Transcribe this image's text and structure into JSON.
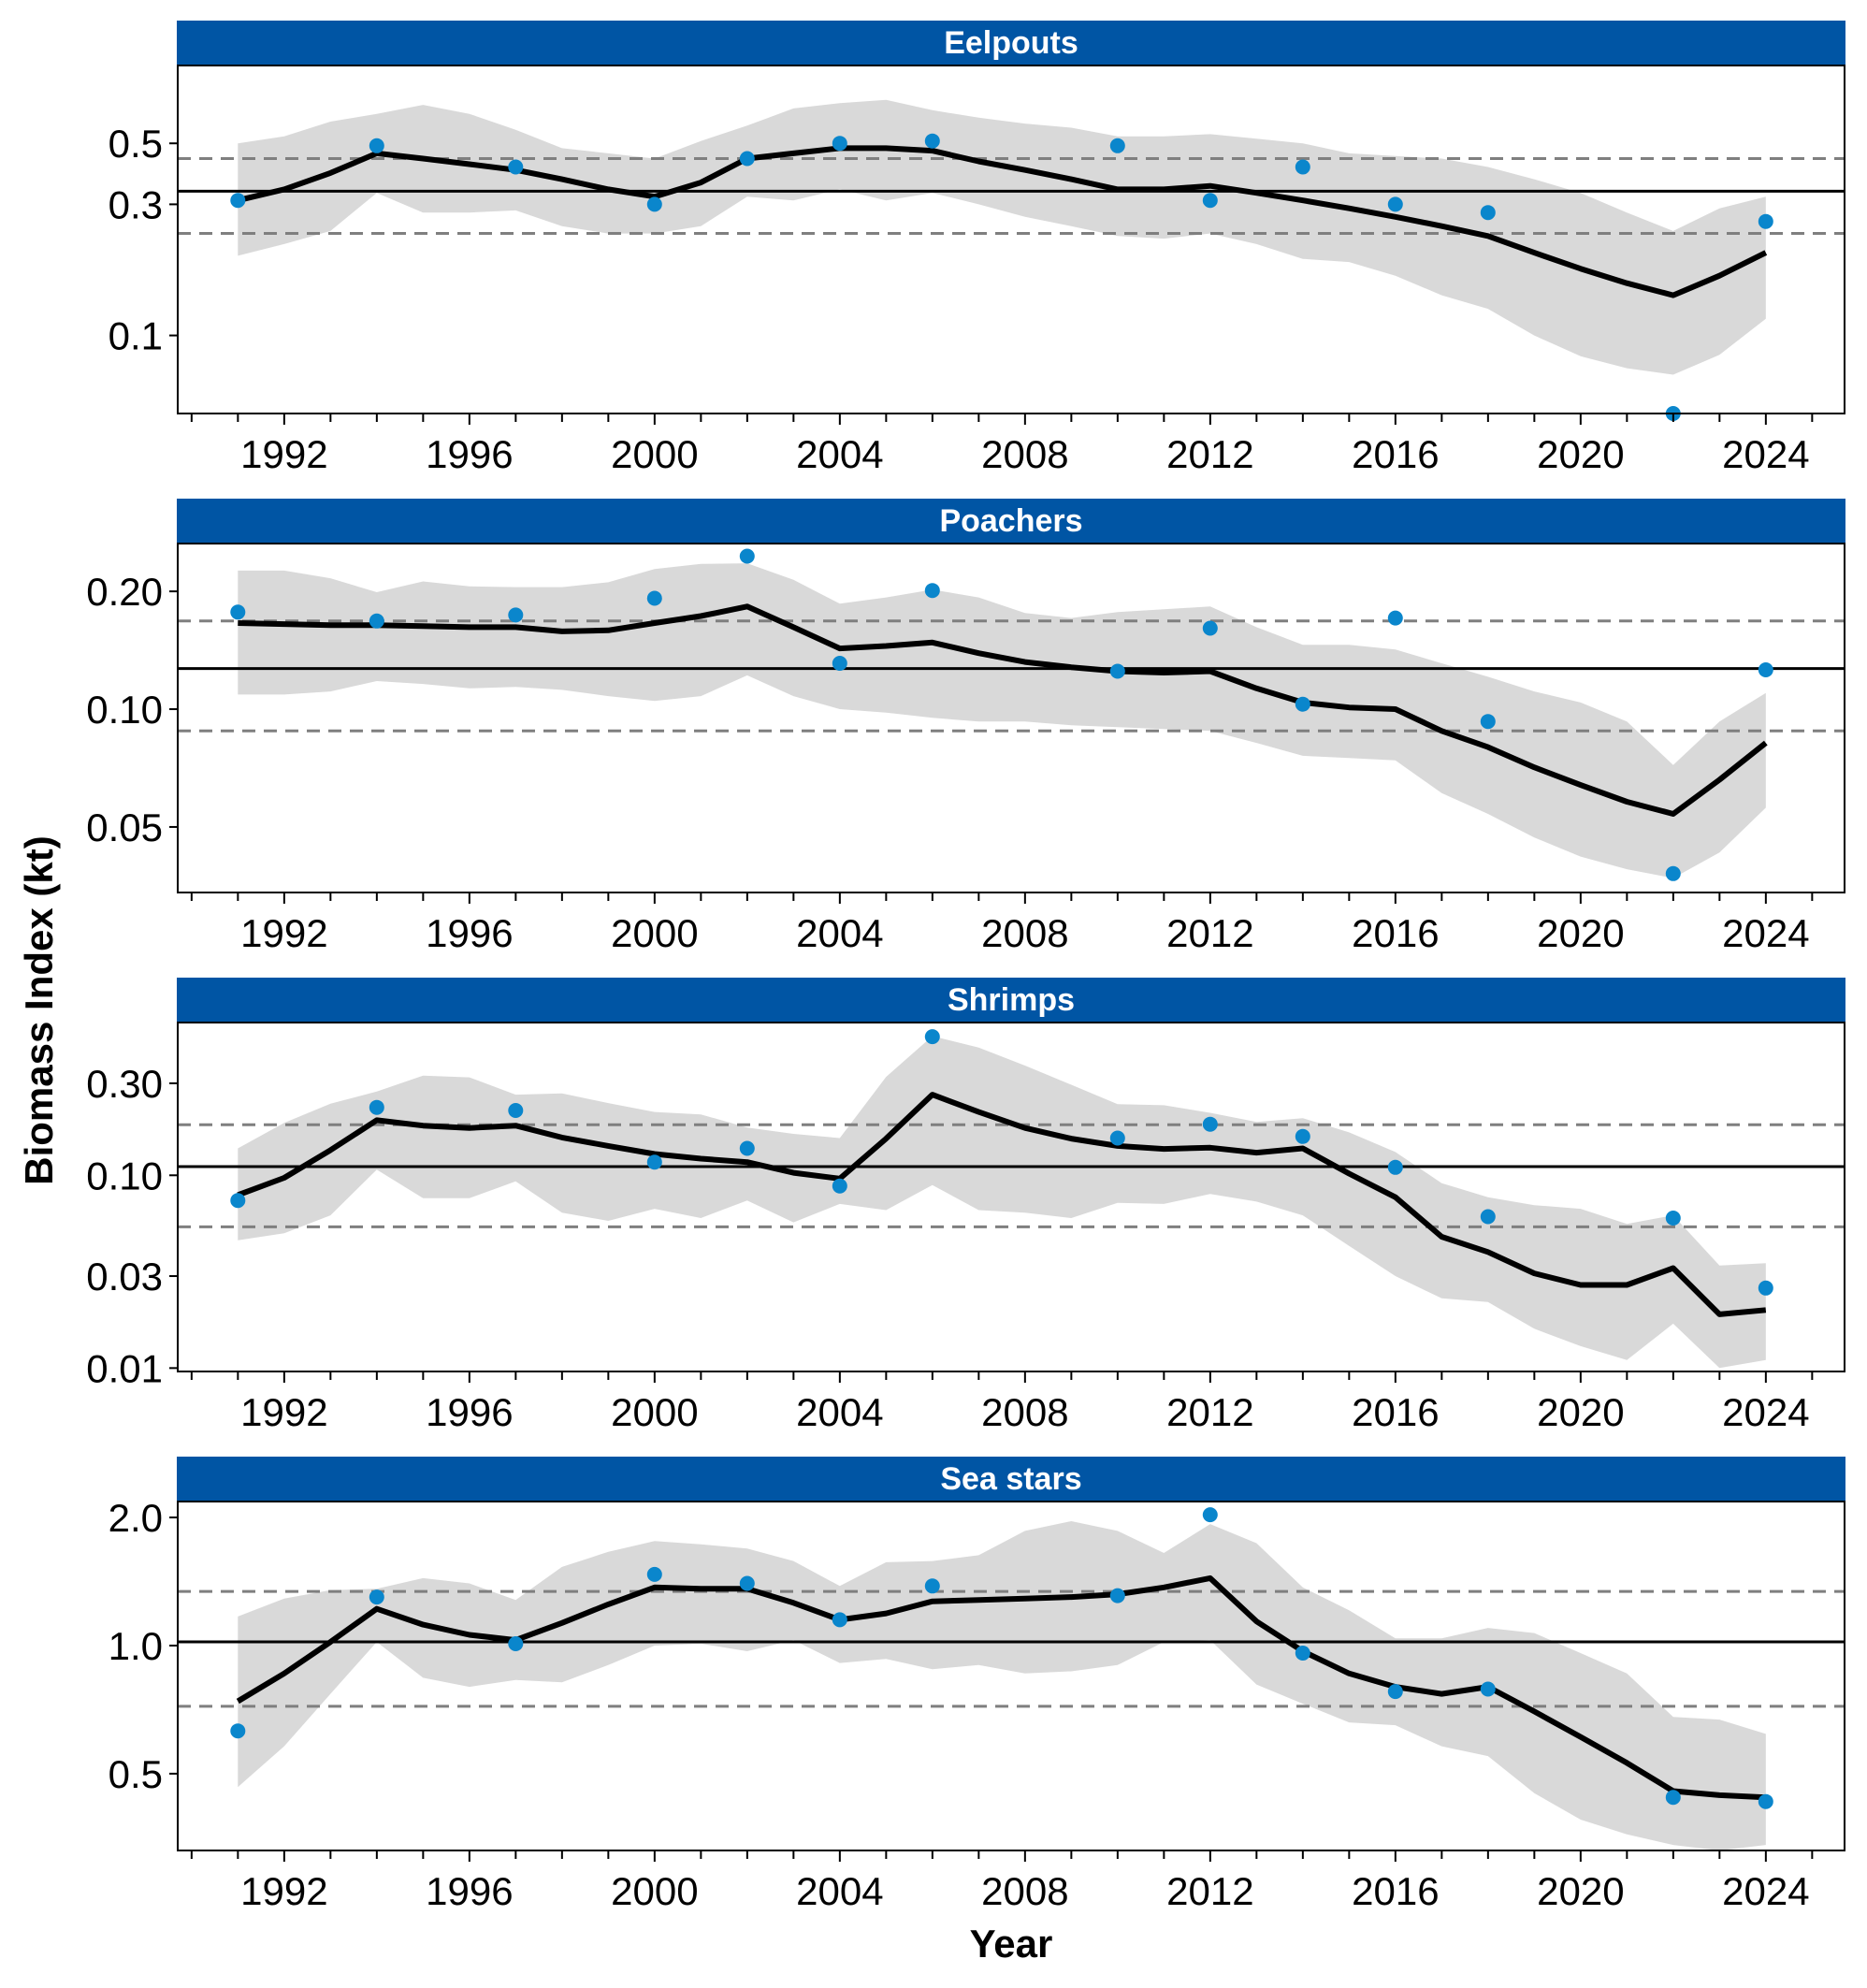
{
  "xlabel": "Year",
  "ylabel": "Biomass Index (kt)",
  "colors": {
    "strip": "#0055A4",
    "points": "#0A86CC",
    "ribbon": "#D9D9D9",
    "trend": "#000000",
    "mean_line": "#000000",
    "ref_lines": "#7F7F7F"
  },
  "chart_data": [
    {
      "type": "line",
      "title": "Eelpouts",
      "y_scale": "log",
      "ylim": [
        0.052,
        0.96
      ],
      "yticks": [
        0.1,
        0.3,
        0.5
      ],
      "ytick_labels": [
        "0.1",
        "0.3",
        "0.5"
      ],
      "xlim": [
        1989.7,
        2025.7
      ],
      "xticks": [
        1992,
        1996,
        2000,
        2004,
        2008,
        2012,
        2016,
        2020,
        2024
      ],
      "mean": 0.335,
      "upper_ref": 0.44,
      "lower_ref": 0.235,
      "fit": {
        "x": [
          1991,
          1992,
          1993,
          1994,
          1995,
          1996,
          1997,
          1998,
          1999,
          2000,
          2001,
          2002,
          2003,
          2004,
          2005,
          2006,
          2007,
          2008,
          2009,
          2010,
          2011,
          2012,
          2013,
          2014,
          2015,
          2016,
          2017,
          2018,
          2019,
          2020,
          2021,
          2022,
          2023,
          2024
        ],
        "y": [
          0.31,
          0.34,
          0.39,
          0.46,
          0.44,
          0.42,
          0.4,
          0.37,
          0.34,
          0.32,
          0.36,
          0.44,
          0.46,
          0.48,
          0.48,
          0.47,
          0.43,
          0.4,
          0.37,
          0.34,
          0.34,
          0.35,
          0.33,
          0.31,
          0.29,
          0.27,
          0.25,
          0.23,
          0.2,
          0.175,
          0.155,
          0.14,
          0.165,
          0.2
        ],
        "lower": [
          0.195,
          0.215,
          0.24,
          0.33,
          0.28,
          0.28,
          0.285,
          0.25,
          0.235,
          0.235,
          0.25,
          0.32,
          0.31,
          0.34,
          0.31,
          0.33,
          0.3,
          0.27,
          0.25,
          0.23,
          0.225,
          0.235,
          0.215,
          0.19,
          0.185,
          0.165,
          0.14,
          0.125,
          0.1,
          0.084,
          0.076,
          0.072,
          0.085,
          0.115
        ],
        "upper": [
          0.5,
          0.53,
          0.6,
          0.64,
          0.69,
          0.64,
          0.56,
          0.48,
          0.46,
          0.44,
          0.51,
          0.58,
          0.67,
          0.7,
          0.72,
          0.66,
          0.62,
          0.59,
          0.57,
          0.53,
          0.53,
          0.54,
          0.52,
          0.5,
          0.46,
          0.45,
          0.44,
          0.41,
          0.37,
          0.33,
          0.28,
          0.24,
          0.29,
          0.32
        ]
      },
      "observed": {
        "x": [
          1991,
          1994,
          1997,
          2000,
          2002,
          2004,
          2006,
          2010,
          2012,
          2014,
          2016,
          2018,
          2022,
          2024
        ],
        "y": [
          0.31,
          0.49,
          0.41,
          0.3,
          0.44,
          0.5,
          0.51,
          0.49,
          0.31,
          0.41,
          0.3,
          0.28,
          0.052,
          0.26
        ]
      }
    },
    {
      "type": "line",
      "title": "Poachers",
      "y_scale": "log",
      "ylim": [
        0.034,
        0.265
      ],
      "yticks": [
        0.05,
        0.1,
        0.2
      ],
      "ytick_labels": [
        "0.05",
        "0.10",
        "0.20"
      ],
      "xlim": [
        1989.7,
        2025.7
      ],
      "xticks": [
        1992,
        1996,
        2000,
        2004,
        2008,
        2012,
        2016,
        2020,
        2024
      ],
      "mean": 0.127,
      "upper_ref": 0.168,
      "lower_ref": 0.088,
      "fit": {
        "x": [
          1991,
          1992,
          1993,
          1994,
          1995,
          1996,
          1997,
          1998,
          1999,
          2000,
          2001,
          2002,
          2003,
          2004,
          2005,
          2006,
          2007,
          2008,
          2009,
          2010,
          2011,
          2012,
          2013,
          2014,
          2015,
          2016,
          2017,
          2018,
          2019,
          2020,
          2021,
          2022,
          2023,
          2024
        ],
        "y": [
          0.166,
          0.165,
          0.164,
          0.164,
          0.163,
          0.162,
          0.162,
          0.158,
          0.159,
          0.166,
          0.173,
          0.183,
          0.162,
          0.143,
          0.145,
          0.148,
          0.139,
          0.132,
          0.128,
          0.125,
          0.124,
          0.125,
          0.113,
          0.104,
          0.101,
          0.1,
          0.088,
          0.08,
          0.071,
          0.064,
          0.058,
          0.054,
          0.066,
          0.082
        ],
        "lower": [
          0.109,
          0.109,
          0.111,
          0.118,
          0.116,
          0.113,
          0.114,
          0.112,
          0.108,
          0.105,
          0.108,
          0.122,
          0.108,
          0.1,
          0.098,
          0.095,
          0.093,
          0.093,
          0.091,
          0.09,
          0.089,
          0.088,
          0.082,
          0.076,
          0.075,
          0.074,
          0.061,
          0.054,
          0.047,
          0.042,
          0.039,
          0.037,
          0.043,
          0.056
        ],
        "upper": [
          0.226,
          0.226,
          0.216,
          0.199,
          0.212,
          0.206,
          0.205,
          0.205,
          0.211,
          0.228,
          0.235,
          0.236,
          0.214,
          0.186,
          0.193,
          0.202,
          0.193,
          0.176,
          0.171,
          0.177,
          0.18,
          0.183,
          0.162,
          0.146,
          0.146,
          0.142,
          0.131,
          0.121,
          0.111,
          0.104,
          0.093,
          0.072,
          0.093,
          0.11
        ]
      },
      "observed": {
        "x": [
          1991,
          1994,
          1997,
          2000,
          2002,
          2004,
          2006,
          2010,
          2012,
          2014,
          2016,
          2018,
          2022,
          2024
        ],
        "y": [
          0.177,
          0.168,
          0.174,
          0.192,
          0.246,
          0.131,
          0.201,
          0.125,
          0.161,
          0.103,
          0.171,
          0.093,
          0.038,
          0.126
        ]
      }
    },
    {
      "type": "line",
      "title": "Shrimps",
      "y_scale": "log",
      "ylim": [
        0.0096,
        0.62
      ],
      "yticks": [
        0.01,
        0.03,
        0.1,
        0.3
      ],
      "ytick_labels": [
        "0.01",
        "0.03",
        "0.10",
        "0.30"
      ],
      "xlim": [
        1989.7,
        2025.7
      ],
      "xticks": [
        1992,
        1996,
        2000,
        2004,
        2008,
        2012,
        2016,
        2020,
        2024
      ],
      "mean": 0.111,
      "upper_ref": 0.183,
      "lower_ref": 0.054,
      "fit": {
        "x": [
          1991,
          1992,
          1993,
          1994,
          1995,
          1996,
          1997,
          1998,
          1999,
          2000,
          2001,
          2002,
          2003,
          2004,
          2005,
          2006,
          2007,
          2008,
          2009,
          2010,
          2011,
          2012,
          2013,
          2014,
          2015,
          2016,
          2017,
          2018,
          2019,
          2020,
          2021,
          2022,
          2023,
          2024
        ],
        "y": [
          0.079,
          0.097,
          0.135,
          0.193,
          0.181,
          0.176,
          0.181,
          0.157,
          0.142,
          0.129,
          0.122,
          0.117,
          0.103,
          0.096,
          0.155,
          0.262,
          0.213,
          0.176,
          0.155,
          0.142,
          0.137,
          0.139,
          0.131,
          0.138,
          0.102,
          0.077,
          0.048,
          0.04,
          0.031,
          0.027,
          0.027,
          0.033,
          0.019,
          0.02
        ],
        "lower": [
          0.046,
          0.05,
          0.062,
          0.107,
          0.076,
          0.076,
          0.093,
          0.064,
          0.058,
          0.067,
          0.06,
          0.074,
          0.057,
          0.071,
          0.066,
          0.089,
          0.066,
          0.064,
          0.06,
          0.072,
          0.071,
          0.08,
          0.073,
          0.062,
          0.043,
          0.03,
          0.023,
          0.022,
          0.016,
          0.013,
          0.011,
          0.017,
          0.01,
          0.011
        ],
        "upper": [
          0.138,
          0.187,
          0.235,
          0.272,
          0.329,
          0.322,
          0.262,
          0.266,
          0.237,
          0.213,
          0.207,
          0.177,
          0.164,
          0.156,
          0.324,
          0.527,
          0.46,
          0.371,
          0.295,
          0.234,
          0.231,
          0.211,
          0.189,
          0.198,
          0.167,
          0.132,
          0.091,
          0.077,
          0.07,
          0.067,
          0.056,
          0.062,
          0.034,
          0.035
        ]
      },
      "observed": {
        "x": [
          1991,
          1994,
          1997,
          2000,
          2002,
          2004,
          2006,
          2010,
          2012,
          2014,
          2016,
          2018,
          2022,
          2024
        ],
        "y": [
          0.074,
          0.225,
          0.217,
          0.117,
          0.138,
          0.088,
          0.524,
          0.156,
          0.184,
          0.159,
          0.11,
          0.061,
          0.06,
          0.026
        ]
      }
    },
    {
      "type": "line",
      "title": "Sea stars",
      "y_scale": "log",
      "ylim": [
        0.33,
        2.18
      ],
      "yticks": [
        0.5,
        1.0,
        2.0
      ],
      "ytick_labels": [
        "0.5",
        "1.0",
        "2.0"
      ],
      "xlim": [
        1989.7,
        2025.7
      ],
      "xticks": [
        1992,
        1996,
        2000,
        2004,
        2008,
        2012,
        2016,
        2020,
        2024
      ],
      "mean": 1.02,
      "upper_ref": 1.34,
      "lower_ref": 0.72,
      "fit": {
        "x": [
          1991,
          1992,
          1993,
          1994,
          1995,
          1996,
          1997,
          1998,
          1999,
          2000,
          2001,
          2002,
          2003,
          2004,
          2005,
          2006,
          2007,
          2008,
          2009,
          2010,
          2011,
          2012,
          2013,
          2014,
          2015,
          2016,
          2017,
          2018,
          2019,
          2020,
          2021,
          2022,
          2023,
          2024
        ],
        "y": [
          0.74,
          0.86,
          1.02,
          1.22,
          1.12,
          1.06,
          1.03,
          1.13,
          1.25,
          1.37,
          1.36,
          1.36,
          1.26,
          1.15,
          1.19,
          1.27,
          1.28,
          1.29,
          1.3,
          1.32,
          1.37,
          1.44,
          1.14,
          0.97,
          0.86,
          0.8,
          0.77,
          0.8,
          0.7,
          0.61,
          0.53,
          0.455,
          0.445,
          0.44
        ],
        "lower": [
          0.465,
          0.58,
          0.77,
          1.02,
          0.84,
          0.8,
          0.83,
          0.82,
          0.9,
          1.0,
          1.01,
          0.97,
          1.03,
          0.91,
          0.93,
          0.88,
          0.9,
          0.86,
          0.87,
          0.9,
          1.02,
          1.03,
          0.81,
          0.73,
          0.66,
          0.65,
          0.58,
          0.55,
          0.45,
          0.39,
          0.36,
          0.34,
          0.33,
          0.34
        ],
        "upper": [
          1.17,
          1.29,
          1.35,
          1.36,
          1.44,
          1.4,
          1.28,
          1.53,
          1.66,
          1.76,
          1.73,
          1.69,
          1.58,
          1.38,
          1.57,
          1.58,
          1.63,
          1.86,
          1.96,
          1.86,
          1.65,
          1.93,
          1.74,
          1.37,
          1.21,
          1.04,
          1.04,
          1.1,
          1.07,
          0.96,
          0.86,
          0.68,
          0.67,
          0.62
        ]
      },
      "observed": {
        "x": [
          1991,
          1994,
          1997,
          2000,
          2002,
          2004,
          2006,
          2010,
          2012,
          2014,
          2016,
          2018,
          2022,
          2024
        ],
        "y": [
          0.63,
          1.3,
          1.01,
          1.47,
          1.4,
          1.15,
          1.38,
          1.31,
          2.03,
          0.96,
          0.78,
          0.79,
          0.44,
          0.43
        ]
      }
    }
  ]
}
